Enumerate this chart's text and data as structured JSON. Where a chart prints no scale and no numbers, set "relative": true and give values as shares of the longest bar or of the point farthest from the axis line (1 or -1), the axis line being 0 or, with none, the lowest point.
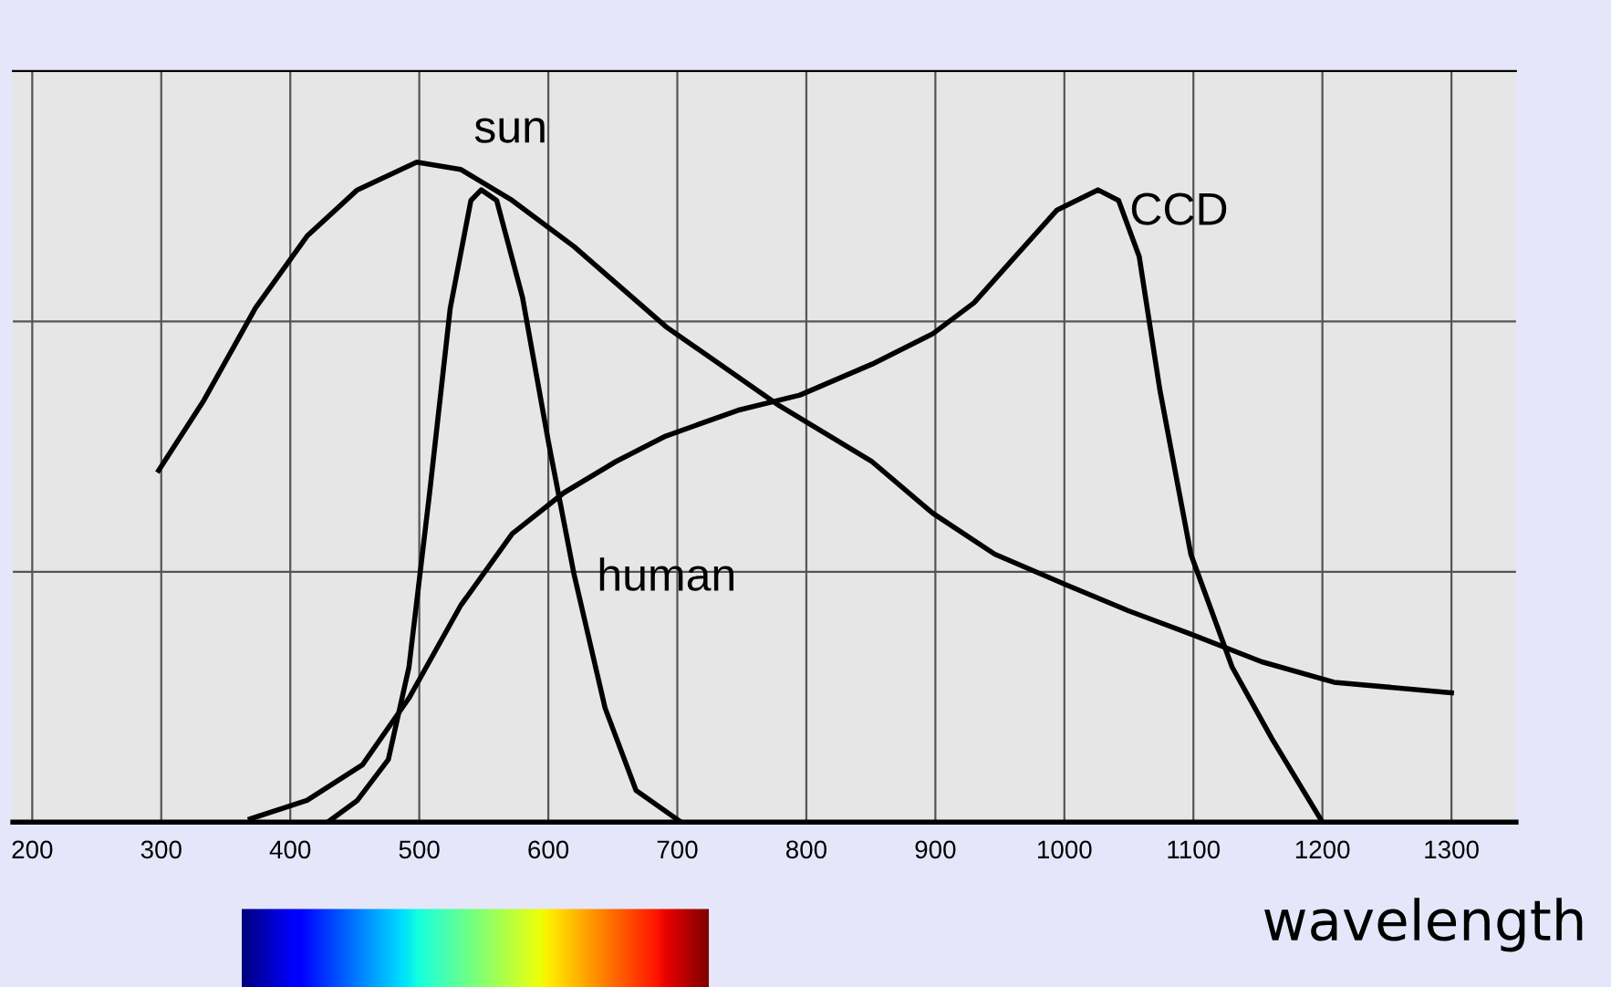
{
  "chart_data": {
    "type": "line",
    "relative": true,
    "xlabel": "wavelength",
    "xlim": [
      185,
      1350
    ],
    "xticks": [
      200,
      300,
      400,
      500,
      600,
      700,
      800,
      900,
      1000,
      1100,
      1200,
      1300
    ],
    "grid": true,
    "line_style": "solid",
    "marker": "none",
    "series": [
      {
        "name": "sun",
        "color": "#000000",
        "x": [
          298,
          333,
          373,
          413,
          452,
          498,
          532,
          572,
          620,
          691,
          779,
          851,
          898,
          946,
          1002,
          1050,
          1098,
          1153,
          1209,
          1300
        ],
        "values": [
          0.533,
          0.639,
          0.779,
          0.888,
          0.958,
          1.0,
          0.989,
          0.942,
          0.872,
          0.751,
          0.631,
          0.546,
          0.468,
          0.406,
          0.359,
          0.32,
          0.285,
          0.243,
          0.212,
          0.196
        ]
      },
      {
        "name": "human",
        "color": "#000000",
        "x": [
          429,
          452,
          476,
          492,
          508,
          524,
          540,
          548,
          560,
          580,
          600,
          620,
          644,
          668,
          703
        ],
        "values": [
          0,
          0.033,
          0.095,
          0.235,
          0.499,
          0.779,
          0.942,
          0.958,
          0.942,
          0.795,
          0.577,
          0.375,
          0.173,
          0.048,
          0
        ]
      },
      {
        "name": "CCD",
        "color": "#000000",
        "x": [
          369,
          413,
          456,
          492,
          532,
          572,
          612,
          652,
          691,
          747,
          795,
          851,
          898,
          930,
          962,
          994,
          1026,
          1042,
          1058,
          1074,
          1098,
          1130,
          1161,
          1200
        ],
        "values": [
          0.005,
          0.033,
          0.087,
          0.188,
          0.328,
          0.437,
          0.499,
          0.546,
          0.585,
          0.624,
          0.647,
          0.694,
          0.74,
          0.787,
          0.857,
          0.927,
          0.958,
          0.942,
          0.857,
          0.655,
          0.406,
          0.235,
          0.126,
          0
        ]
      }
    ]
  }
}
